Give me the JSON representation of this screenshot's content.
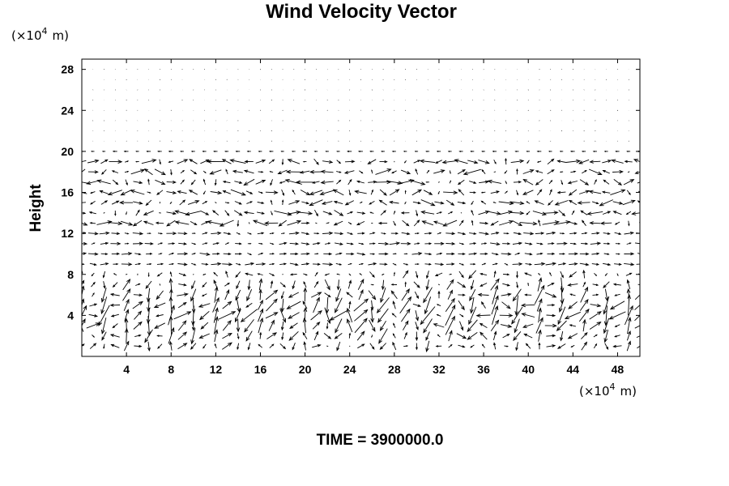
{
  "chart_data": {
    "type": "vector-field",
    "title": "Wind Velocity Vector",
    "ylabel": "Height",
    "xlabel": "",
    "x_unit": "m",
    "y_unit": "m",
    "unit_scale": "×10",
    "unit_exponent": "4",
    "xlim": [
      0,
      50
    ],
    "ylim": [
      0,
      29
    ],
    "x_ticks": [
      4,
      8,
      12,
      16,
      20,
      24,
      28,
      32,
      36,
      40,
      44,
      48
    ],
    "y_ticks": [
      4,
      8,
      12,
      16,
      20,
      24,
      28
    ],
    "grid": false,
    "annotation": "TIME = 3900000.0",
    "layers": [
      {
        "height_range": [
          0,
          8.5
        ],
        "description": "convective cells",
        "u_dominant": "variable",
        "max_speed": "high"
      },
      {
        "height_range": [
          9,
          12
        ],
        "u_dominant": "eastward",
        "max_speed": "moderate"
      },
      {
        "height_range": [
          12.5,
          19.5
        ],
        "u_dominant": "variable",
        "max_speed": "high"
      },
      {
        "height_range": [
          19.5,
          20.5
        ],
        "u_dominant": "westward",
        "max_speed": "low"
      },
      {
        "height_range": [
          21,
          29
        ],
        "u_dominant": "calm",
        "max_speed": "very low"
      }
    ]
  }
}
